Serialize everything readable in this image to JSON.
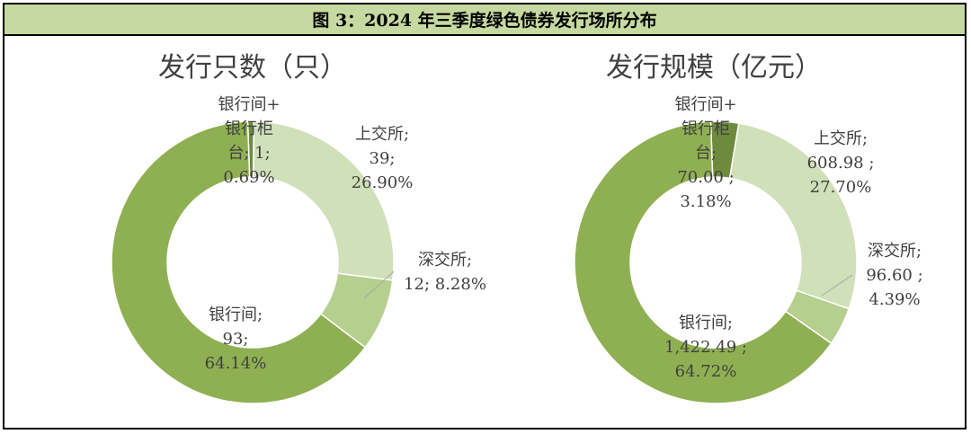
{
  "figure_title": "图 3：2024 年三季度绿色债券发行场所分布",
  "chart_data": [
    {
      "type": "pie",
      "title": "发行只数（只）",
      "slices": [
        {
          "name": "银行间+银行柜台",
          "value": 1,
          "pct": "0.69%",
          "color": "#6e8b3d",
          "label": [
            "银行间+",
            "银行柜",
            "台; 1;",
            "0.69%"
          ]
        },
        {
          "name": "上交所",
          "value": 39,
          "pct": "26.90%",
          "color": "#d0e0b9",
          "label": [
            "上交所;",
            "39;",
            "26.90%"
          ]
        },
        {
          "name": "深交所",
          "value": 12,
          "pct": "8.28%",
          "color": "#b4cf8e",
          "label": [
            "深交所;",
            "12; 8.28%"
          ]
        },
        {
          "name": "银行间",
          "value": 93,
          "pct": "64.14%",
          "color": "#8fb052",
          "label": [
            "银行间;",
            "93;",
            "64.14%"
          ]
        }
      ]
    },
    {
      "type": "pie",
      "title": "发行规模（亿元）",
      "slices": [
        {
          "name": "银行间+银行柜台",
          "value": 70.0,
          "pct": "3.18%",
          "color": "#6e8b3d",
          "label": [
            "银行间+",
            "银行柜",
            "台;",
            "70.00 ;",
            "3.18%"
          ]
        },
        {
          "name": "上交所",
          "value": 608.98,
          "pct": "27.70%",
          "color": "#d0e0b9",
          "label": [
            "上交所;",
            "608.98 ;",
            "27.70%"
          ]
        },
        {
          "name": "深交所",
          "value": 96.6,
          "pct": "4.39%",
          "color": "#b4cf8e",
          "label": [
            "深交所;",
            "96.60 ;",
            "4.39%"
          ]
        },
        {
          "name": "银行间",
          "value": 1422.49,
          "pct": "64.72%",
          "color": "#8fb052",
          "label": [
            "银行间;",
            "1,422.49 ;",
            "64.72%"
          ]
        }
      ]
    }
  ]
}
